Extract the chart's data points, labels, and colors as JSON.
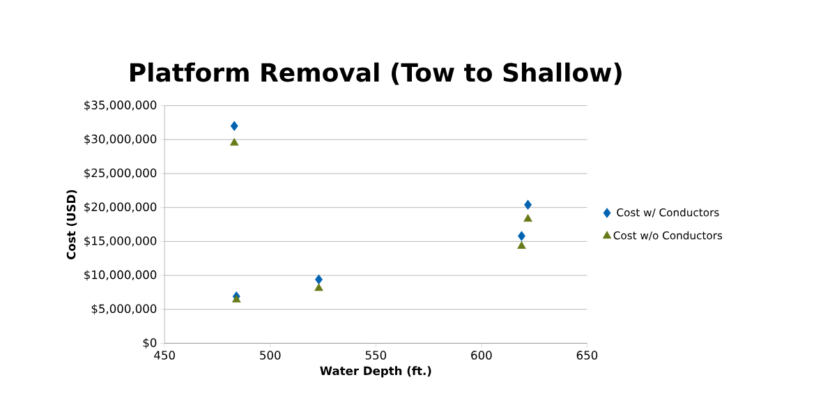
{
  "chart_data": {
    "type": "scatter",
    "title": "Platform Removal (Tow to Shallow)",
    "xlabel": "Water Depth (ft.)",
    "ylabel": "Cost (USD)",
    "xlim": [
      450,
      650
    ],
    "xticks": [
      450,
      500,
      550,
      600,
      650
    ],
    "ylim": [
      0,
      35000000
    ],
    "yticks": [
      {
        "value": 0,
        "label": "$0"
      },
      {
        "value": 5000000,
        "label": "$5,000,000"
      },
      {
        "value": 10000000,
        "label": "$10,000,000"
      },
      {
        "value": 15000000,
        "label": "$15,000,000"
      },
      {
        "value": 20000000,
        "label": "$20,000,000"
      },
      {
        "value": 25000000,
        "label": "$25,000,000"
      },
      {
        "value": 30000000,
        "label": "$30,000,000"
      },
      {
        "value": 35000000,
        "label": "$35,000,000"
      }
    ],
    "grid": "y",
    "legend": "right",
    "series": [
      {
        "name": "Cost w/ Conductors",
        "color": "#0063b1",
        "marker": "diamond",
        "x": [
          483,
          484,
          523,
          622,
          619
        ],
        "values": [
          32000000,
          6900000,
          9400000,
          20400000,
          15800000
        ]
      },
      {
        "name": "Cost w/o Conductors",
        "color": "#667a18",
        "marker": "triangle",
        "x": [
          483,
          484,
          523,
          622,
          619
        ],
        "values": [
          29500000,
          6400000,
          8100000,
          18300000,
          14300000
        ]
      }
    ]
  }
}
